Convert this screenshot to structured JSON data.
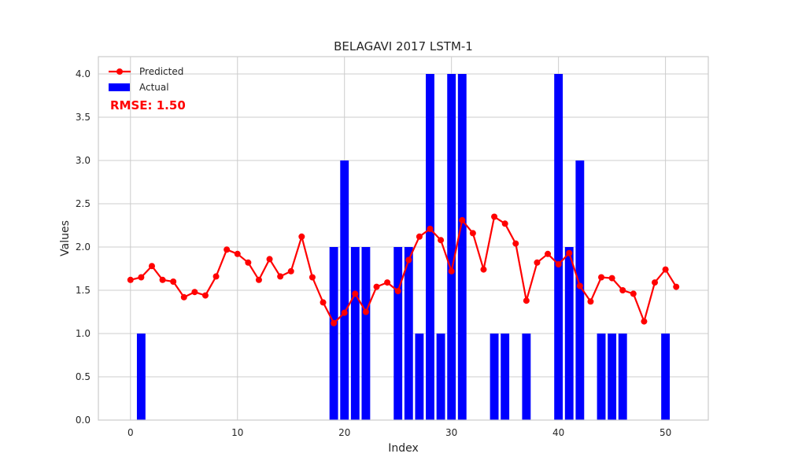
{
  "chart_data": {
    "type": "bar",
    "title": "BELAGAVI 2017 LSTM-1",
    "xlabel": "Index",
    "ylabel": "Values",
    "xlim": [
      -3,
      54
    ],
    "ylim": [
      0,
      4.2
    ],
    "xticks": [
      0,
      10,
      20,
      30,
      40,
      50
    ],
    "yticks": [
      0.0,
      0.5,
      1.0,
      1.5,
      2.0,
      2.5,
      3.0,
      3.5,
      4.0
    ],
    "xtick_labels": [
      "0",
      "10",
      "20",
      "30",
      "40",
      "50"
    ],
    "ytick_labels": [
      "0.0",
      "0.5",
      "1.0",
      "1.5",
      "2.0",
      "2.5",
      "3.0",
      "3.5",
      "4.0"
    ],
    "grid": true,
    "legend_position": "top-left",
    "annotation": "RMSE: 1.50",
    "x": [
      0,
      1,
      2,
      3,
      4,
      5,
      6,
      7,
      8,
      9,
      10,
      11,
      12,
      13,
      14,
      15,
      16,
      17,
      18,
      19,
      20,
      21,
      22,
      23,
      24,
      25,
      26,
      27,
      28,
      29,
      30,
      31,
      32,
      33,
      34,
      35,
      36,
      37,
      38,
      39,
      40,
      41,
      42,
      43,
      44,
      45,
      46,
      47,
      48,
      49,
      50,
      51
    ],
    "series": [
      {
        "name": "Predicted",
        "kind": "line",
        "color": "#ff0000",
        "values": [
          1.62,
          1.65,
          1.78,
          1.62,
          1.6,
          1.42,
          1.48,
          1.44,
          1.66,
          1.97,
          1.92,
          1.82,
          1.62,
          1.86,
          1.66,
          1.72,
          2.12,
          1.65,
          1.36,
          1.12,
          1.24,
          1.46,
          1.25,
          1.54,
          1.59,
          1.49,
          1.85,
          2.12,
          2.21,
          2.08,
          1.72,
          2.31,
          2.16,
          1.74,
          2.35,
          2.27,
          2.04,
          1.38,
          1.82,
          1.92,
          1.8,
          1.93,
          1.55,
          1.37,
          1.65,
          1.64,
          1.5,
          1.46,
          1.14,
          1.59,
          1.74,
          1.54
        ]
      },
      {
        "name": "Actual",
        "kind": "bar",
        "color": "#0000ff",
        "values": [
          0,
          1,
          0,
          0,
          0,
          0,
          0,
          0,
          0,
          0,
          0,
          0,
          0,
          0,
          0,
          0,
          0,
          0,
          0,
          2,
          3,
          2,
          2,
          0,
          0,
          2,
          2,
          1,
          4,
          1,
          4,
          4,
          0,
          0,
          1,
          1,
          0,
          1,
          0,
          0,
          4,
          2,
          3,
          0,
          1,
          1,
          1,
          0,
          0,
          0,
          1,
          0
        ]
      }
    ]
  }
}
